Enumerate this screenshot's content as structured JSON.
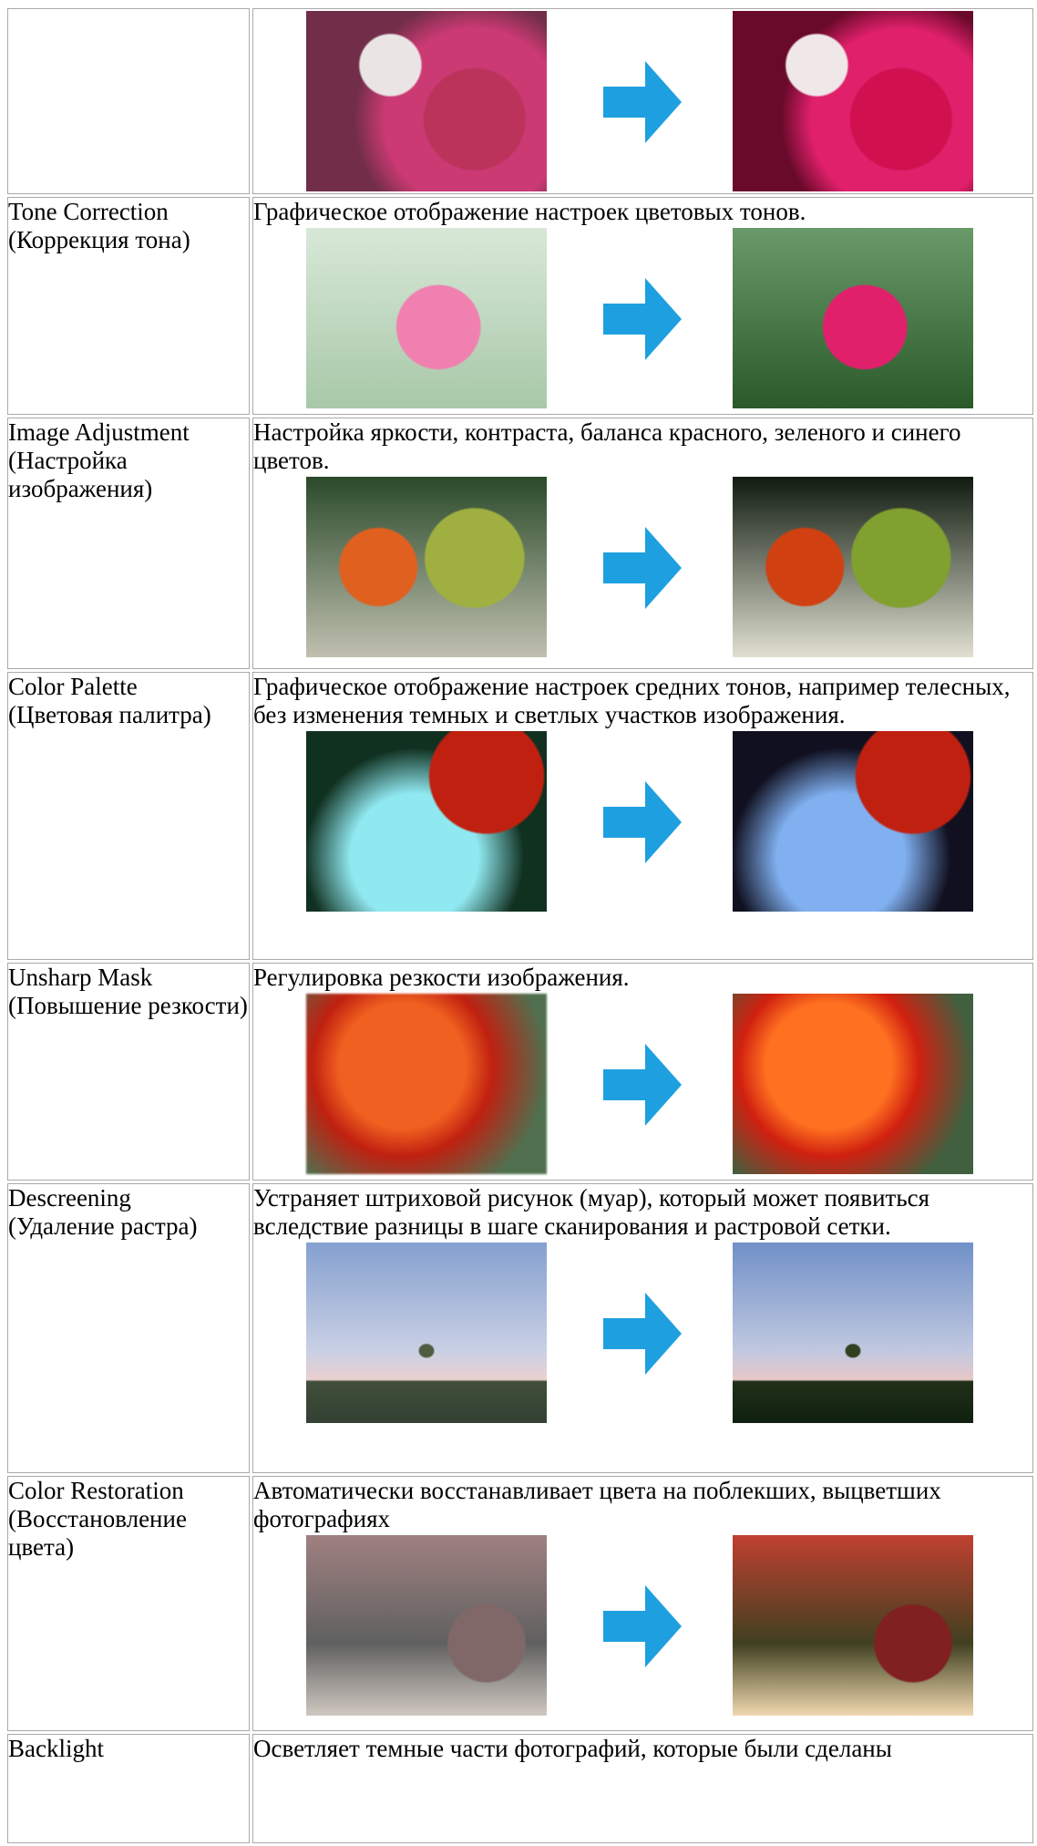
{
  "rows": [
    {
      "label": [
        "Tone Correction",
        "(Коррекция тона)"
      ],
      "description": "Графическое отображение настроек цветовых тонов."
    },
    {
      "label": [
        "Image Adjustment",
        "(Настройка изображения)"
      ],
      "description": "Настройка яркости, контраста, баланса красного, зеленого и синего цветов."
    },
    {
      "label": [
        "Color Palette",
        "(Цветовая палитра)"
      ],
      "description": "Графическое отображение настроек средних тонов, например телесных, без изменения темных и светлых участков изображения."
    },
    {
      "label": [
        "Unsharp Mask",
        "(Повышение резкости)"
      ],
      "description": "Регулировка резкости изображения."
    },
    {
      "label": [
        "Descreening",
        "(Удаление растра)"
      ],
      "description": "Устраняет штриховой рисунок (муар), который может появиться вследствие разницы в шаге сканирования и растровой сетки."
    },
    {
      "label": [
        "Color Restoration",
        "(Восстановление цвета)"
      ],
      "description": "Автоматически восстанавливает цвета на поблекших, выцветших фотографиях"
    },
    {
      "label": [
        "Backlight"
      ],
      "description": "Осветляет темные части фотографий, которые были сделаны"
    }
  ]
}
